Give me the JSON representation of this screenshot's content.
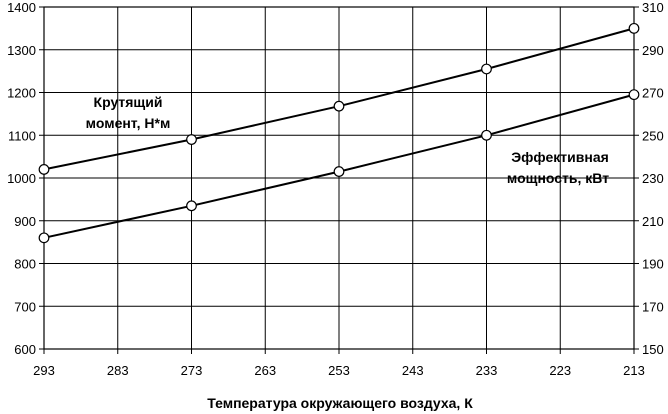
{
  "chart_data": {
    "type": "line",
    "xlabel": "Температура окружающего воздуха, К",
    "x": [
      293,
      273,
      253,
      233,
      213
    ],
    "xlim": [
      293,
      213
    ],
    "x_ticks": [
      "293",
      "283",
      "273",
      "263",
      "253",
      "243",
      "233",
      "223",
      "213"
    ],
    "y_left_ticks": [
      "600",
      "700",
      "800",
      "900",
      "1000",
      "1100",
      "1200",
      "1300",
      "1400"
    ],
    "y_right_ticks": [
      "150",
      "170",
      "190",
      "210",
      "230",
      "250",
      "270",
      "290",
      "310"
    ],
    "ylim_left": [
      600,
      1400
    ],
    "ylim_right": [
      150,
      310
    ],
    "grid": true,
    "series": [
      {
        "name": "Крутящий момент, Н*м",
        "axis": "left",
        "values": [
          1020,
          1090,
          1168,
          1255,
          1350
        ]
      },
      {
        "name": "Эффективная мощность, кВт",
        "axis": "right",
        "values": [
          202,
          217,
          233,
          250,
          269
        ]
      }
    ],
    "annotations": {
      "torque": [
        "Крутящий",
        "момент, Н*м"
      ],
      "power": [
        "Эффективная",
        "мощность, кВт"
      ]
    }
  }
}
